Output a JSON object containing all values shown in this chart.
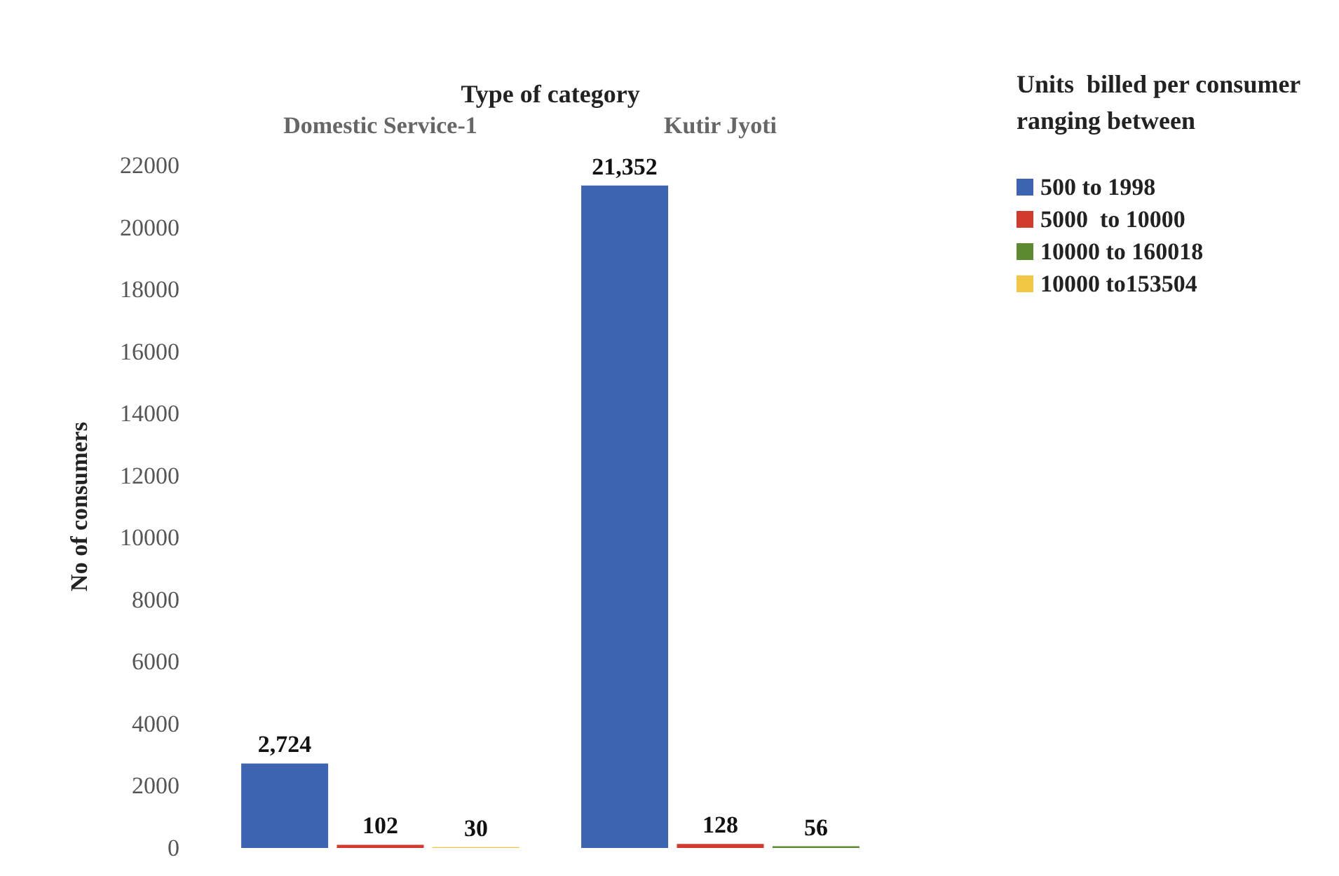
{
  "chart_data": {
    "type": "bar",
    "xlabel": "Type of category",
    "ylabel": "No of consumers",
    "legend_title": "Units  billed per consumer\nranging between",
    "categories": [
      "Domestic Service-1",
      "Kutir Jyoti"
    ],
    "series": [
      {
        "name": "500 to 1998",
        "color": "#3d63b3",
        "values": [
          2724,
          21352
        ],
        "value_labels": [
          "2,724",
          "21,352"
        ]
      },
      {
        "name": "5000  to 10000",
        "color": "#d23a2e",
        "values": [
          102,
          128
        ],
        "value_labels": [
          "102",
          "128"
        ]
      },
      {
        "name": "10000 to 160018",
        "color": "#5c8a30",
        "values": [
          null,
          56
        ],
        "value_labels": [
          null,
          "56"
        ]
      },
      {
        "name": "10000 to153504",
        "color": "#f2c744",
        "values": [
          30,
          null
        ],
        "value_labels": [
          "30",
          null
        ]
      }
    ],
    "ylim": [
      0,
      22000
    ],
    "yticks": [
      0,
      2000,
      4000,
      6000,
      8000,
      10000,
      12000,
      14000,
      16000,
      18000,
      20000,
      22000
    ],
    "grid": false,
    "legend": "top right"
  }
}
